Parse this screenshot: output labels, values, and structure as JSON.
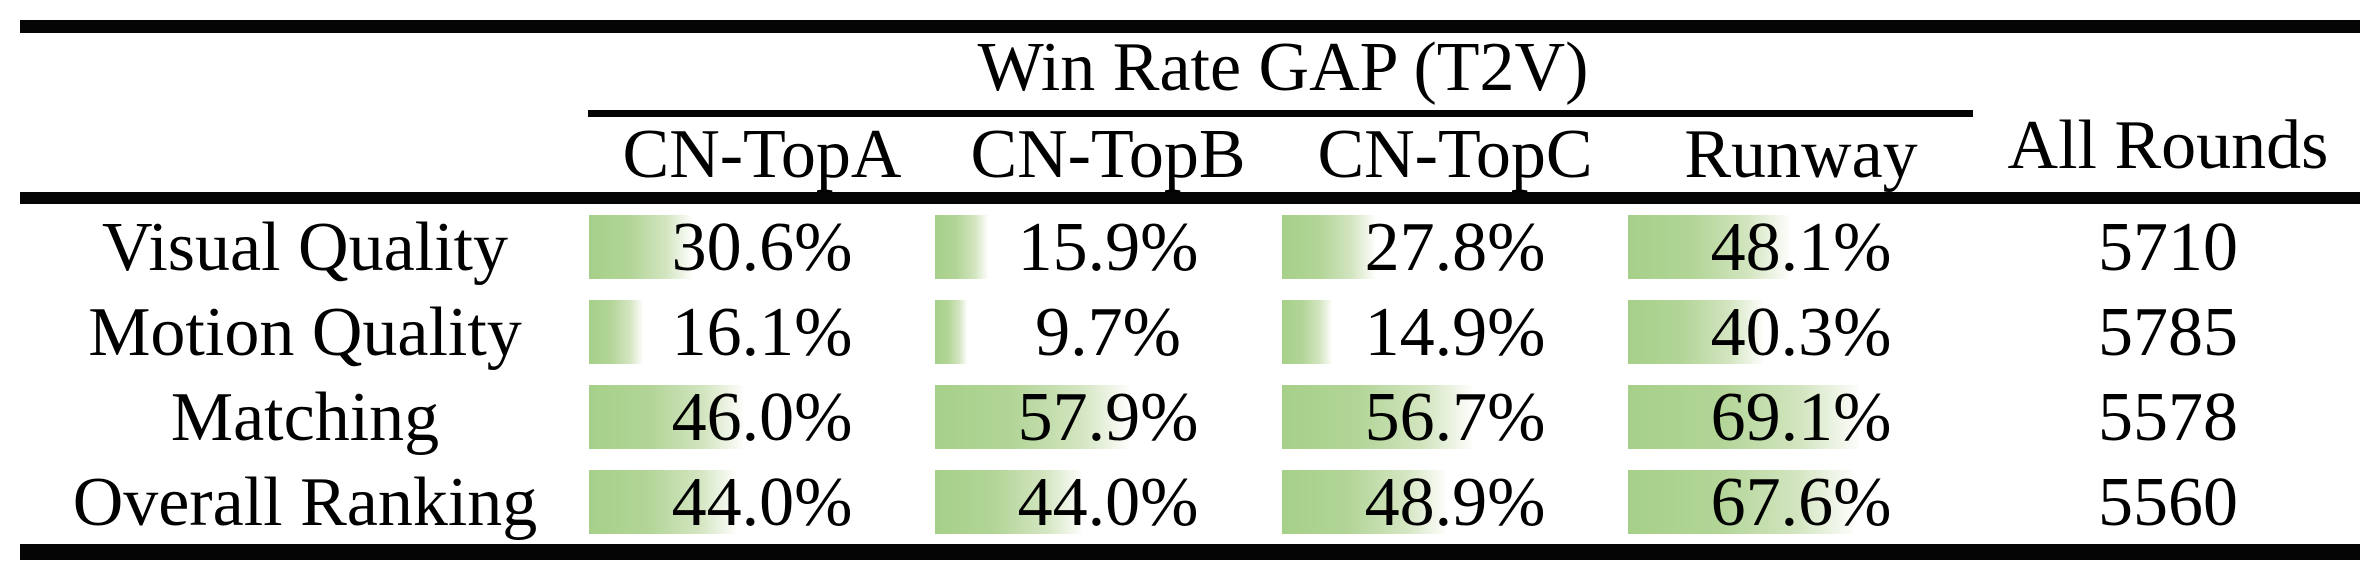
{
  "chart_data": {
    "type": "table",
    "title": "Win Rate GAP (T2V)",
    "group_header": "Win Rate GAP (T2V)",
    "columns": [
      "CN-TopA",
      "CN-TopB",
      "CN-TopC",
      "Runway"
    ],
    "extra_column": "All Rounds",
    "rows": [
      {
        "label": "Visual Quality",
        "win_rate_gap_percent": [
          30.6,
          15.9,
          27.8,
          48.1
        ],
        "all_rounds": 5710
      },
      {
        "label": "Motion Quality",
        "win_rate_gap_percent": [
          16.1,
          9.7,
          14.9,
          40.3
        ],
        "all_rounds": 5785
      },
      {
        "label": "Matching",
        "win_rate_gap_percent": [
          46.0,
          57.9,
          56.7,
          69.1
        ],
        "all_rounds": 5578
      },
      {
        "label": "Overall Ranking",
        "win_rate_gap_percent": [
          44.0,
          44.0,
          48.9,
          67.6
        ],
        "all_rounds": 5560
      }
    ],
    "value_format": "one_decimal_percent",
    "layout_hints": {
      "bars": "green gradient data bar anchored at left of each percentage cell, width proportional to value (100% = full column width)",
      "grid": "horizontal booktabs rules only, no vertical lines"
    },
    "colors": {
      "bar_green": "#a6d089",
      "bar_fade_to": "#ffffff",
      "rule_black": "#050505",
      "text": "#000000",
      "background": "#ffffff"
    }
  }
}
